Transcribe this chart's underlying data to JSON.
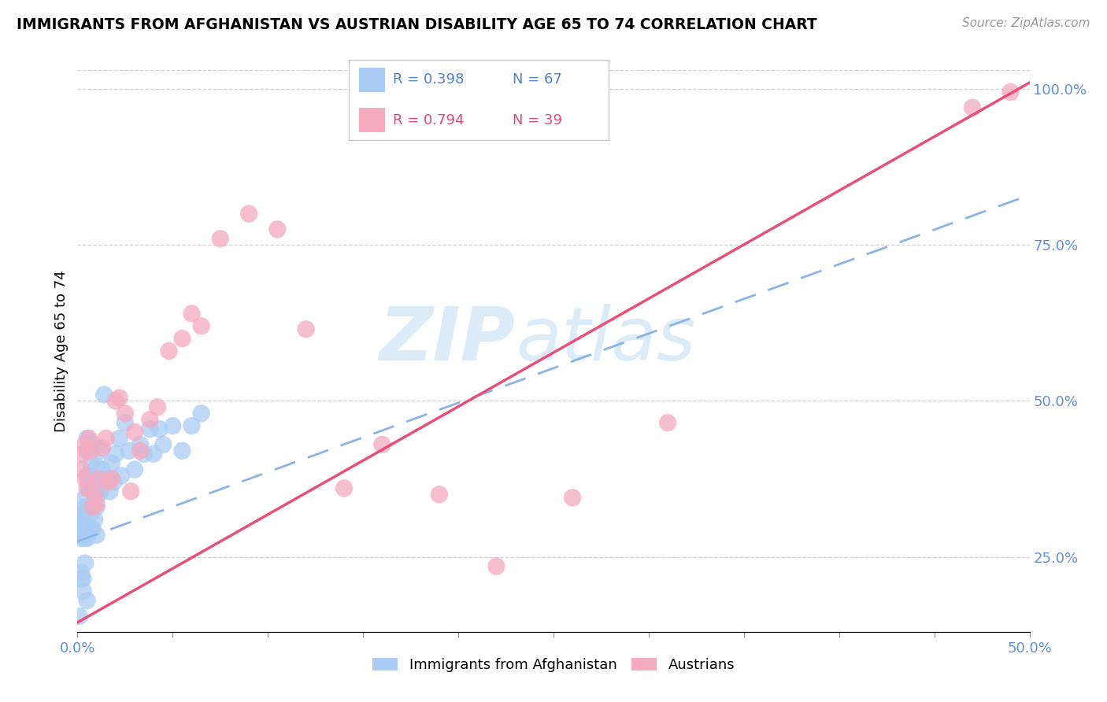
{
  "title": "IMMIGRANTS FROM AFGHANISTAN VS AUSTRIAN DISABILITY AGE 65 TO 74 CORRELATION CHART",
  "source": "Source: ZipAtlas.com",
  "ylabel": "Disability Age 65 to 74",
  "legend_blue_R": "0.398",
  "legend_blue_N": "67",
  "legend_pink_R": "0.794",
  "legend_pink_N": "39",
  "legend_label_blue": "Immigrants from Afghanistan",
  "legend_label_pink": "Austrians",
  "watermark_zip": "ZIP",
  "watermark_atlas": "atlas",
  "blue_color": "#aaccf4",
  "pink_color": "#f4aabf",
  "blue_line_color": "#8ab4e8",
  "pink_line_color": "#e8507a",
  "xmin": 0.0,
  "xmax": 0.5,
  "ymin": 0.13,
  "ymax": 1.03,
  "blue_line_x0": 0.0,
  "blue_line_y0": 0.275,
  "blue_line_x1": 0.5,
  "blue_line_y1": 0.83,
  "pink_line_x0": 0.0,
  "pink_line_y0": 0.145,
  "pink_line_x1": 0.5,
  "pink_line_y1": 1.01,
  "blue_points_x": [
    0.001,
    0.001,
    0.001,
    0.002,
    0.002,
    0.002,
    0.002,
    0.003,
    0.003,
    0.003,
    0.003,
    0.003,
    0.004,
    0.004,
    0.004,
    0.004,
    0.005,
    0.005,
    0.005,
    0.005,
    0.006,
    0.006,
    0.006,
    0.007,
    0.007,
    0.007,
    0.008,
    0.008,
    0.008,
    0.009,
    0.009,
    0.01,
    0.01,
    0.01,
    0.011,
    0.012,
    0.012,
    0.013,
    0.014,
    0.015,
    0.016,
    0.017,
    0.018,
    0.019,
    0.02,
    0.022,
    0.023,
    0.025,
    0.027,
    0.03,
    0.033,
    0.035,
    0.038,
    0.04,
    0.043,
    0.045,
    0.05,
    0.055,
    0.06,
    0.065,
    0.002,
    0.003,
    0.004,
    0.003,
    0.005,
    0.002,
    0.001
  ],
  "blue_points_y": [
    0.305,
    0.31,
    0.285,
    0.325,
    0.315,
    0.295,
    0.28,
    0.295,
    0.305,
    0.315,
    0.285,
    0.32,
    0.345,
    0.33,
    0.29,
    0.28,
    0.42,
    0.44,
    0.38,
    0.28,
    0.375,
    0.36,
    0.295,
    0.4,
    0.38,
    0.32,
    0.43,
    0.36,
    0.295,
    0.35,
    0.31,
    0.33,
    0.395,
    0.285,
    0.35,
    0.42,
    0.355,
    0.39,
    0.51,
    0.375,
    0.375,
    0.355,
    0.4,
    0.37,
    0.415,
    0.44,
    0.38,
    0.465,
    0.42,
    0.39,
    0.43,
    0.415,
    0.455,
    0.415,
    0.455,
    0.43,
    0.46,
    0.42,
    0.46,
    0.48,
    0.215,
    0.215,
    0.24,
    0.195,
    0.18,
    0.225,
    0.155
  ],
  "pink_points_x": [
    0.002,
    0.003,
    0.004,
    0.004,
    0.005,
    0.006,
    0.007,
    0.008,
    0.009,
    0.01,
    0.011,
    0.013,
    0.015,
    0.016,
    0.018,
    0.02,
    0.022,
    0.025,
    0.028,
    0.03,
    0.033,
    0.038,
    0.042,
    0.048,
    0.055,
    0.06,
    0.065,
    0.075,
    0.09,
    0.105,
    0.12,
    0.14,
    0.16,
    0.19,
    0.22,
    0.26,
    0.31,
    0.47,
    0.49
  ],
  "pink_points_y": [
    0.39,
    0.415,
    0.43,
    0.375,
    0.36,
    0.44,
    0.42,
    0.33,
    0.35,
    0.335,
    0.375,
    0.425,
    0.44,
    0.37,
    0.375,
    0.5,
    0.505,
    0.48,
    0.355,
    0.45,
    0.42,
    0.47,
    0.49,
    0.58,
    0.6,
    0.64,
    0.62,
    0.76,
    0.8,
    0.775,
    0.615,
    0.36,
    0.43,
    0.35,
    0.235,
    0.345,
    0.465,
    0.97,
    0.995
  ]
}
